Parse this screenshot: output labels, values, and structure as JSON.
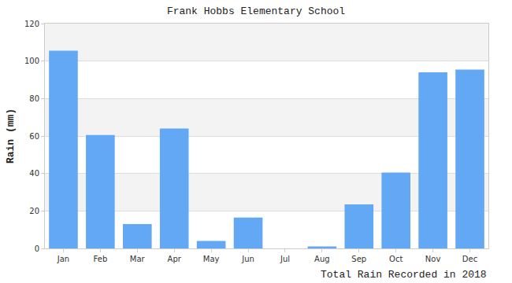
{
  "chart_data": {
    "type": "bar",
    "title": "Frank Hobbs Elementary School",
    "y_label": "Rain (mm)",
    "x_label": "Total Rain Recorded in 2018",
    "categories": [
      "Jan",
      "Feb",
      "Mar",
      "Apr",
      "May",
      "Jun",
      "Jul",
      "Aug",
      "Sep",
      "Oct",
      "Nov",
      "Dec"
    ],
    "values": [
      105.5,
      60.5,
      13,
      64,
      4,
      16.5,
      0,
      1,
      23.5,
      40.5,
      94,
      95.5
    ],
    "color": "#63a8f4",
    "ylim": [
      0,
      120
    ],
    "yticks": [
      0,
      20,
      40,
      60,
      80,
      100,
      120
    ],
    "grid": true
  }
}
